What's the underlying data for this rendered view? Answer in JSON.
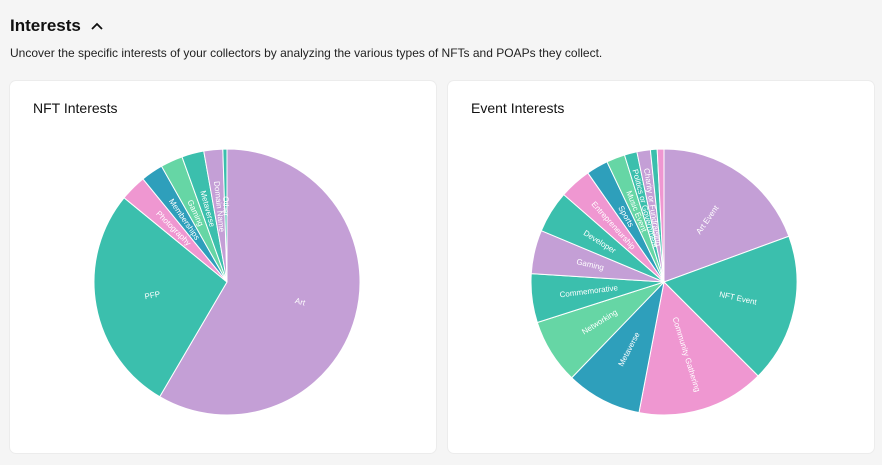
{
  "section": {
    "title": "Interests",
    "description": "Uncover the specific interests of your collectors by analyzing the various types of NFTs and POAPs they collect."
  },
  "cards": {
    "nft_title": "NFT Interests",
    "event_title": "Event Interests"
  },
  "icons": {
    "collapse": "chevron-up-icon"
  },
  "colors": {
    "purple": "#c49fd6",
    "teal": "#3bbfad",
    "pink": "#ef97d1",
    "blue": "#2e9fbb",
    "green": "#66d6a5"
  },
  "chart_data": [
    {
      "type": "pie",
      "title": "NFT Interests",
      "categories": [
        "Art",
        "PFP",
        "Photography",
        "Memberships",
        "Gaming",
        "Metaverse",
        "Domain Name",
        "Other"
      ],
      "values": [
        58.5,
        27.5,
        3.2,
        2.7,
        2.7,
        2.7,
        2.3,
        0.5
      ],
      "colors": [
        "#c49fd6",
        "#3bbfad",
        "#ef97d1",
        "#2e9fbb",
        "#66d6a5",
        "#3bbfad",
        "#c49fd6",
        "#3bbfad"
      ]
    },
    {
      "type": "pie",
      "title": "Event Interests",
      "categories": [
        "Art Event",
        "NFT Event",
        "Community Gathering",
        "Metaverse",
        "Networking",
        "Commemorative",
        "Gaming",
        "Developer",
        "Entrepreneurship",
        "Sports",
        "Music Event",
        "Politics or Government",
        "Charity or Fundraising",
        "",
        ""
      ],
      "values": [
        19.0,
        17.7,
        15.2,
        9.0,
        7.7,
        5.8,
        5.2,
        5.0,
        3.8,
        2.6,
        2.2,
        1.5,
        1.6,
        0.8,
        0.8
      ],
      "colors": [
        "#c49fd6",
        "#3bbfad",
        "#ef97d1",
        "#2e9fbb",
        "#66d6a5",
        "#3bbfad",
        "#c49fd6",
        "#3bbfad",
        "#ef97d1",
        "#2e9fbb",
        "#66d6a5",
        "#3bbfad",
        "#c49fd6",
        "#3bbfad",
        "#ef97d1"
      ]
    }
  ]
}
